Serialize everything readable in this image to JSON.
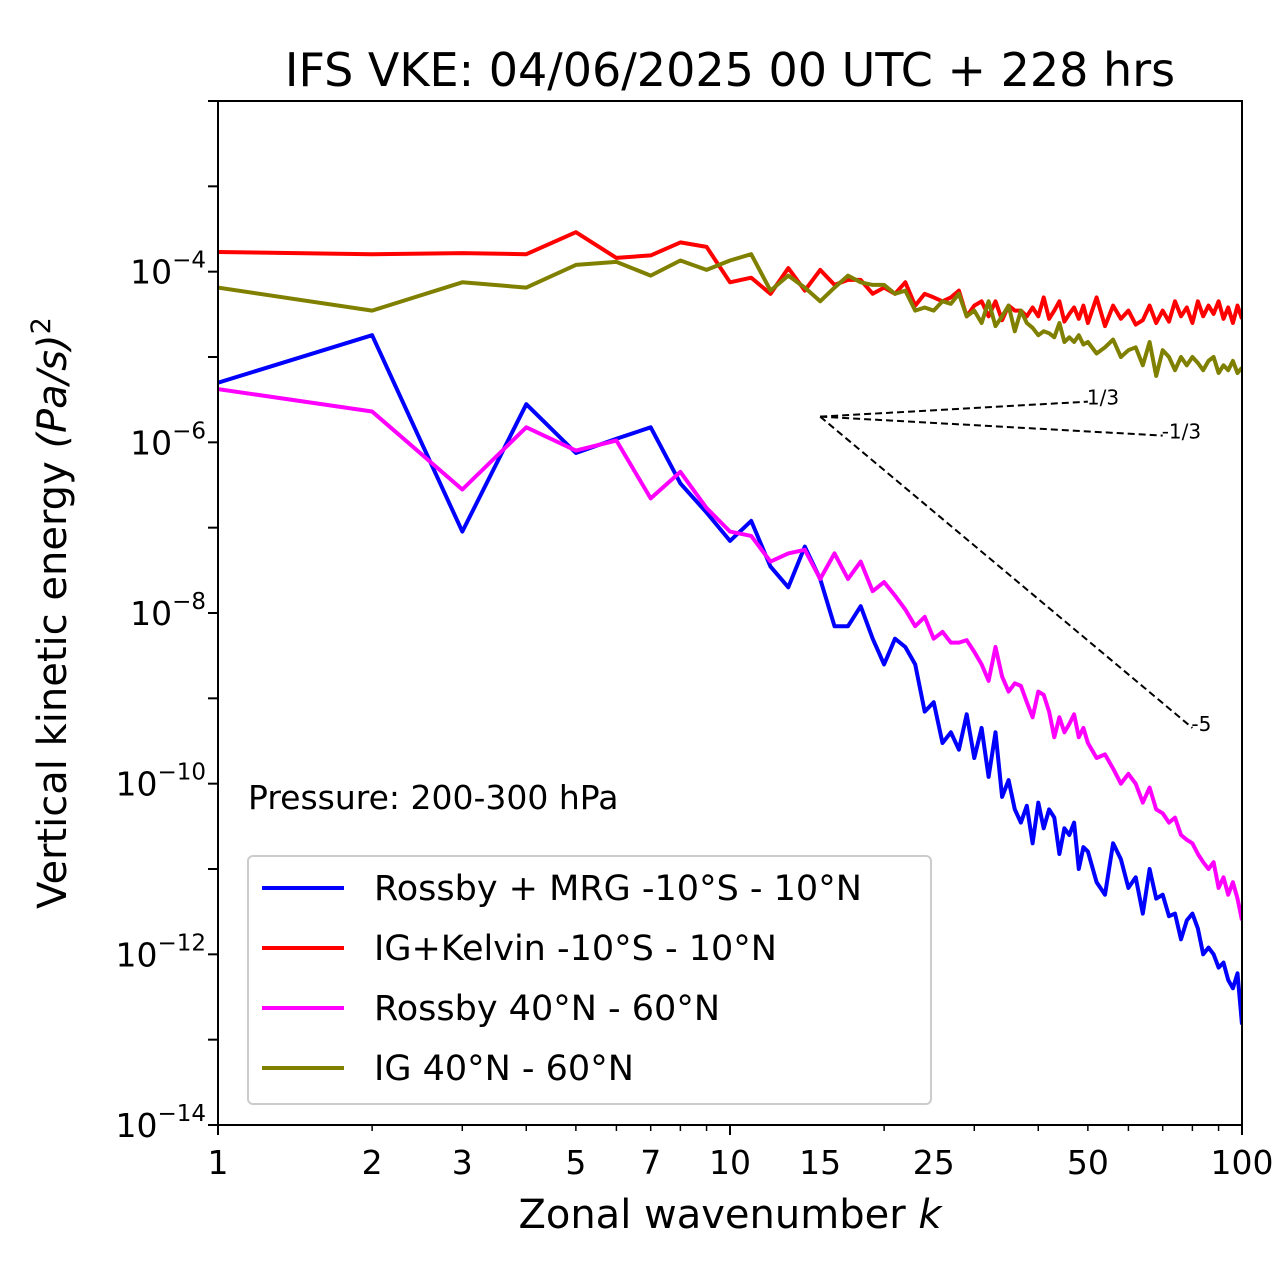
{
  "chart_data": {
    "type": "line",
    "title": "IFS VKE: 04/06/2025 00 UTC + 228 hrs",
    "xlabel": "Zonal wavenumber k",
    "xlabel_prefix": "Zonal wavenumber ",
    "xlabel_var": "k",
    "ylabel": "Vertical kinetic energy (Pa/s)^2",
    "ylabel_prefix": "Vertical kinetic energy ",
    "ylabel_unit": "(Pa/s)",
    "ylabel_power": "2",
    "xscale": "log",
    "yscale": "log",
    "xlim": [
      1,
      100
    ],
    "ylim": [
      1e-14,
      0.01
    ],
    "xticks": [
      1,
      2,
      3,
      5,
      7,
      10,
      15,
      25,
      50,
      100
    ],
    "xtick_labels": [
      "1",
      "2",
      "3",
      "5",
      "7",
      "10",
      "15",
      "25",
      "50",
      "100"
    ],
    "yticks": [
      {
        "value": 1e-14,
        "base": "10",
        "exp": "−14"
      },
      {
        "value": 1e-12,
        "base": "10",
        "exp": "−12"
      },
      {
        "value": 1e-10,
        "base": "10",
        "exp": "−10"
      },
      {
        "value": 1e-08,
        "base": "10",
        "exp": "−8"
      },
      {
        "value": 1e-06,
        "base": "10",
        "exp": "−6"
      },
      {
        "value": 0.0001,
        "base": "10",
        "exp": "−4"
      }
    ],
    "annotation": "Pressure: 200-300 hPa",
    "legend_position": "lower-left",
    "grid": false,
    "reference_slopes": [
      {
        "label": "1/3",
        "x": [
          15,
          50
        ],
        "y": [
          2e-06,
          3e-06
        ]
      },
      {
        "label": "-1/3",
        "x": [
          15,
          70
        ],
        "y": [
          2e-06,
          1.2e-06
        ]
      },
      {
        "label": "-5",
        "x": [
          15,
          80
        ],
        "y": [
          2e-06,
          4.5e-10
        ]
      }
    ],
    "series": [
      {
        "name": "Rossby + MRG -10°S - 10°N",
        "color": "#0000ff",
        "x": [
          1,
          2,
          3,
          4,
          5,
          6,
          7,
          8,
          9,
          10,
          11,
          12,
          13,
          14,
          15,
          16,
          17,
          18,
          19,
          20,
          21,
          22,
          23,
          24,
          25,
          26,
          27,
          28,
          29,
          30,
          31,
          32,
          33,
          34,
          35,
          36,
          37,
          38,
          39,
          40,
          41,
          42,
          43,
          44,
          45,
          46,
          47,
          48,
          49,
          50,
          52,
          54,
          56,
          58,
          60,
          62,
          64,
          66,
          68,
          70,
          72,
          74,
          76,
          78,
          80,
          82,
          84,
          86,
          88,
          90,
          92,
          94,
          96,
          98,
          100
        ],
        "y": [
          5e-06,
          1.8e-05,
          9e-08,
          2.8e-06,
          7.5e-07,
          1.1e-06,
          1.5e-06,
          3.3e-07,
          1.5e-07,
          7e-08,
          1.2e-07,
          3.5e-08,
          2e-08,
          6e-08,
          2.5e-08,
          7e-09,
          7e-09,
          1.2e-08,
          5e-09,
          2.5e-09,
          5e-09,
          4e-09,
          2.5e-09,
          7e-10,
          9e-10,
          3e-10,
          4e-10,
          2.5e-10,
          6.5e-10,
          2e-10,
          4.5e-10,
          1.2e-10,
          4e-10,
          7e-11,
          1.1e-10,
          5e-11,
          3.5e-11,
          5.5e-11,
          2e-11,
          6e-11,
          3e-11,
          5e-11,
          4e-11,
          1.5e-11,
          3e-11,
          2.5e-11,
          3.5e-11,
          1e-11,
          1.8e-11,
          1.6e-11,
          7e-12,
          5e-12,
          2e-11,
          1.3e-11,
          6e-12,
          8e-12,
          3e-12,
          1e-11,
          4.5e-12,
          5e-12,
          2.8e-12,
          3e-12,
          1.5e-12,
          2.5e-12,
          3e-12,
          2e-12,
          1e-12,
          1.2e-12,
          1e-12,
          7e-13,
          8e-13,
          5e-13,
          4e-13,
          6e-13,
          1.5e-13
        ]
      },
      {
        "name": "IG+Kelvin -10°S - 10°N",
        "color": "#ff0000",
        "x": [
          1,
          2,
          3,
          4,
          5,
          6,
          7,
          8,
          9,
          10,
          11,
          12,
          13,
          14,
          15,
          16,
          17,
          18,
          19,
          20,
          21,
          22,
          23,
          24,
          25,
          26,
          27,
          28,
          29,
          30,
          31,
          32,
          33,
          34,
          35,
          36,
          37,
          38,
          39,
          40,
          41,
          42,
          43,
          44,
          45,
          46,
          47,
          48,
          49,
          50,
          52,
          54,
          56,
          58,
          60,
          62,
          64,
          66,
          68,
          70,
          72,
          74,
          76,
          78,
          80,
          82,
          84,
          86,
          88,
          90,
          92,
          94,
          96,
          98,
          100
        ],
        "y": [
          0.00017,
          0.00016,
          0.000165,
          0.00016,
          0.00029,
          0.000145,
          0.000155,
          0.00022,
          0.000195,
          7.5e-05,
          8.5e-05,
          5.5e-05,
          0.00011,
          6e-05,
          0.000105,
          7e-05,
          8e-05,
          8e-05,
          5.5e-05,
          6.5e-05,
          5.5e-05,
          7.5e-05,
          4e-05,
          5.5e-05,
          5e-05,
          4.5e-05,
          5e-05,
          6e-05,
          3e-05,
          4e-05,
          4.5e-05,
          3e-05,
          4.5e-05,
          2.7e-05,
          4e-05,
          3.5e-05,
          3.5e-05,
          3e-05,
          3.8e-05,
          3e-05,
          5e-05,
          2.8e-05,
          3.5e-05,
          4.5e-05,
          2.6e-05,
          3.2e-05,
          3.8e-05,
          2.8e-05,
          4e-05,
          2.5e-05,
          5e-05,
          2.3e-05,
          4e-05,
          2.8e-05,
          3.5e-05,
          2.4e-05,
          2.7e-05,
          4e-05,
          2.5e-05,
          3.5e-05,
          2.6e-05,
          4.5e-05,
          3e-05,
          3.8e-05,
          2.5e-05,
          4.5e-05,
          3e-05,
          4e-05,
          3.2e-05,
          4.5e-05,
          2.8e-05,
          3.8e-05,
          2.5e-05,
          4e-05,
          2.8e-05
        ]
      },
      {
        "name": "Rossby 40°N - 60°N",
        "color": "#ff00ff",
        "x": [
          1,
          2,
          3,
          4,
          5,
          6,
          7,
          8,
          9,
          10,
          11,
          12,
          13,
          14,
          15,
          16,
          17,
          18,
          19,
          20,
          21,
          22,
          23,
          24,
          25,
          26,
          27,
          28,
          29,
          30,
          31,
          32,
          33,
          34,
          35,
          36,
          37,
          38,
          39,
          40,
          41,
          42,
          43,
          44,
          45,
          46,
          47,
          48,
          49,
          50,
          52,
          54,
          56,
          58,
          60,
          62,
          64,
          66,
          68,
          70,
          72,
          74,
          76,
          78,
          80,
          82,
          84,
          86,
          88,
          90,
          92,
          94,
          96,
          98,
          100
        ],
        "y": [
          4.2e-06,
          2.3e-06,
          2.8e-07,
          1.5e-06,
          8e-07,
          1.05e-06,
          2.2e-07,
          4.5e-07,
          1.7e-07,
          9e-08,
          8e-08,
          4e-08,
          5e-08,
          5.5e-08,
          2.5e-08,
          5e-08,
          2.5e-08,
          4e-08,
          1.8e-08,
          2.3e-08,
          1.6e-08,
          1.1e-08,
          7e-09,
          9e-09,
          5e-09,
          6e-09,
          4.5e-09,
          4.5e-09,
          4.8e-09,
          3.5e-09,
          2.5e-09,
          1.6e-09,
          4e-09,
          1.8e-09,
          1.2e-09,
          1.5e-09,
          1.4e-09,
          9e-10,
          6e-10,
          1.2e-09,
          1.1e-09,
          7e-10,
          3.5e-10,
          6e-10,
          4e-10,
          5e-10,
          6.5e-10,
          3.5e-10,
          4.5e-10,
          3e-10,
          2e-10,
          2.2e-10,
          1.5e-10,
          1e-10,
          1.3e-10,
          1e-10,
          6e-11,
          9e-11,
          5e-11,
          4.5e-11,
          3.5e-11,
          4e-11,
          2.5e-11,
          2.2e-11,
          2e-11,
          1.5e-11,
          1.2e-11,
          1e-11,
          1.2e-11,
          6e-12,
          8e-12,
          5e-12,
          7e-12,
          4.5e-12,
          2.5e-12
        ]
      },
      {
        "name": "IG 40°N - 60°N",
        "color": "#808000",
        "x": [
          1,
          2,
          3,
          4,
          5,
          6,
          7,
          8,
          9,
          10,
          11,
          12,
          13,
          14,
          15,
          16,
          17,
          18,
          19,
          20,
          21,
          22,
          23,
          24,
          25,
          26,
          27,
          28,
          29,
          30,
          31,
          32,
          33,
          34,
          35,
          36,
          37,
          38,
          39,
          40,
          41,
          42,
          43,
          44,
          45,
          46,
          47,
          48,
          49,
          50,
          52,
          54,
          56,
          58,
          60,
          62,
          64,
          66,
          68,
          70,
          72,
          74,
          76,
          78,
          80,
          82,
          84,
          86,
          88,
          90,
          92,
          94,
          96,
          98,
          100
        ],
        "y": [
          6.5e-05,
          3.5e-05,
          7.5e-05,
          6.5e-05,
          0.00012,
          0.00013,
          9e-05,
          0.000135,
          0.000105,
          0.000135,
          0.00016,
          6e-05,
          9e-05,
          6.5e-05,
          4.5e-05,
          6.5e-05,
          9e-05,
          7.5e-05,
          7e-05,
          7e-05,
          5.5e-05,
          6e-05,
          3.5e-05,
          3.8e-05,
          3.5e-05,
          4.5e-05,
          4.2e-05,
          5.5e-05,
          3e-05,
          3.5e-05,
          2.5e-05,
          4.5e-05,
          2.3e-05,
          3e-05,
          4e-05,
          2e-05,
          3.5e-05,
          2.5e-05,
          2.2e-05,
          1.8e-05,
          2e-05,
          1.9e-05,
          1.7e-05,
          2.5e-05,
          1.5e-05,
          1.7e-05,
          1.5e-05,
          1.8e-05,
          1.4e-05,
          1.5e-05,
          1.1e-05,
          1.3e-05,
          1.6e-05,
          1e-05,
          1.2e-05,
          1.3e-05,
          8e-06,
          1.5e-05,
          6e-06,
          1.2e-05,
          1e-05,
          7e-06,
          1e-05,
          8e-06,
          1e-05,
          8.5e-06,
          7e-06,
          9e-06,
          1e-05,
          6.5e-06,
          8e-06,
          7e-06,
          9e-06,
          6.5e-06,
          7.5e-06
        ]
      }
    ]
  }
}
